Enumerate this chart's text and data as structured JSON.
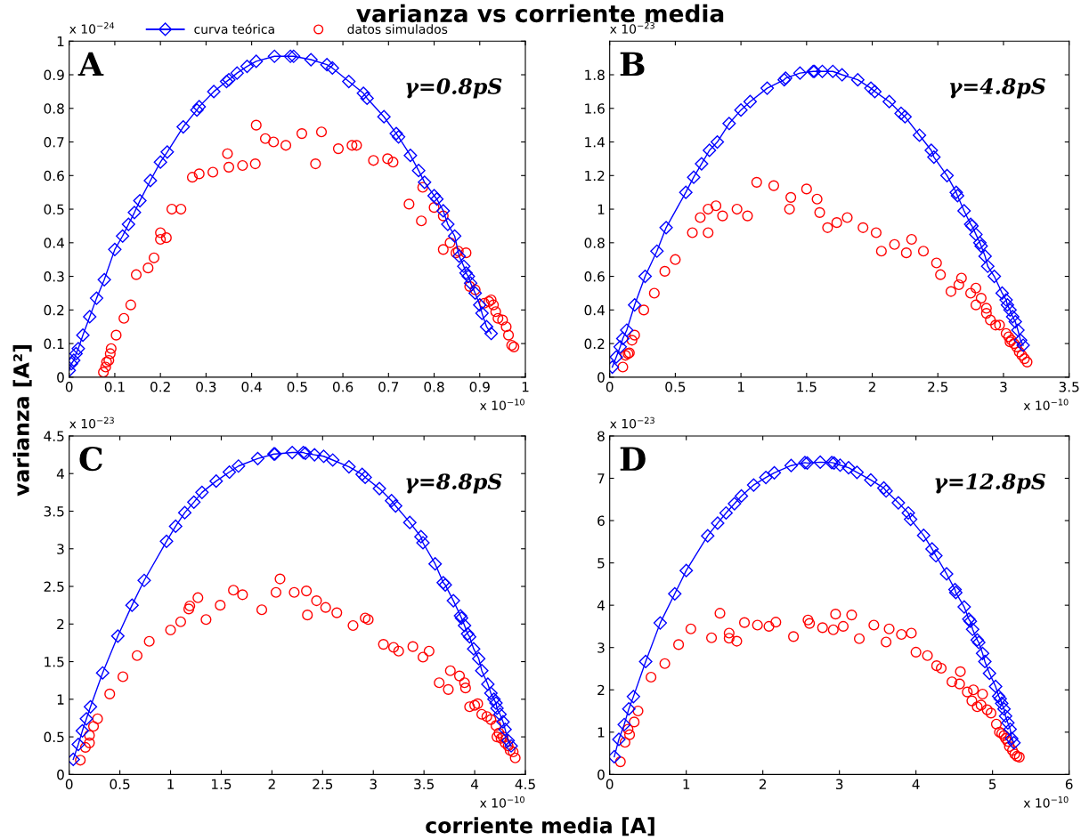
{
  "chart_data": [
    {
      "type": "scatter",
      "title": "varianza vs corriente media",
      "ylabel": "varianza [A²]",
      "legend": "top",
      "grid": false,
      "xlim": [
        0,
        1
      ],
      "xticks": [
        0,
        0.1,
        0.2,
        0.3,
        0.4,
        0.5,
        0.6,
        0.7,
        0.8,
        0.9,
        1
      ],
      "ylim": [
        0,
        1
      ],
      "yticks": [
        0,
        0.1,
        0.2,
        0.3,
        0.4,
        0.5,
        0.6,
        0.7,
        0.8,
        0.9,
        1
      ],
      "annotations": [
        "A",
        "γ=0.8pS",
        "x 10$^{−24}$",
        "x 10$^{−10}$"
      ],
      "series": [
        {
          "name": "curva teórica",
          "type": "line",
          "marker": "diamond",
          "line_style": "solid",
          "color": "#0000ff",
          "x": [
            0,
            0.005,
            0.01,
            0.015,
            0.02,
            0.03,
            0.045,
            0.06,
            0.077,
            0.1,
            0.117,
            0.13,
            0.143,
            0.155,
            0.178,
            0.2,
            0.215,
            0.25,
            0.28,
            0.285,
            0.317,
            0.345,
            0.35,
            0.368,
            0.39,
            0.41,
            0.45,
            0.485,
            0.492,
            0.53,
            0.565,
            0.577,
            0.613,
            0.645,
            0.653,
            0.69,
            0.717,
            0.722,
            0.748,
            0.766,
            0.779,
            0.8,
            0.806,
            0.82,
            0.83,
            0.845,
            0.855,
            0.865,
            0.87,
            0.875,
            0.88,
            0.89,
            0.9,
            0.905,
            0.915,
            0.925
          ],
          "values": [
            0.02,
            0.04,
            0.05,
            0.07,
            0.085,
            0.125,
            0.18,
            0.235,
            0.29,
            0.38,
            0.42,
            0.455,
            0.49,
            0.525,
            0.585,
            0.64,
            0.67,
            0.745,
            0.795,
            0.805,
            0.85,
            0.88,
            0.885,
            0.905,
            0.925,
            0.94,
            0.955,
            0.955,
            0.955,
            0.945,
            0.93,
            0.92,
            0.88,
            0.845,
            0.83,
            0.775,
            0.725,
            0.715,
            0.66,
            0.615,
            0.58,
            0.54,
            0.53,
            0.495,
            0.455,
            0.42,
            0.36,
            0.33,
            0.31,
            0.3,
            0.28,
            0.25,
            0.215,
            0.19,
            0.15,
            0.13
          ]
        },
        {
          "name": "datos simulados",
          "marker": "circle",
          "color": "#ff0000",
          "x": [
            0.075,
            0.08,
            0.082,
            0.087,
            0.09,
            0.092,
            0.103,
            0.12,
            0.135,
            0.147,
            0.173,
            0.186,
            0.2,
            0.2,
            0.213,
            0.225,
            0.245,
            0.27,
            0.285,
            0.315,
            0.347,
            0.35,
            0.38,
            0.408,
            0.41,
            0.43,
            0.448,
            0.475,
            0.51,
            0.54,
            0.553,
            0.59,
            0.62,
            0.63,
            0.667,
            0.698,
            0.71,
            0.745,
            0.772,
            0.775,
            0.8,
            0.82,
            0.82,
            0.835,
            0.848,
            0.853,
            0.87,
            0.878,
            0.89,
            0.91,
            0.92,
            0.925,
            0.93,
            0.935,
            0.94,
            0.95,
            0.958,
            0.963,
            0.97,
            0.975
          ],
          "values": [
            0.015,
            0.03,
            0.045,
            0.05,
            0.07,
            0.085,
            0.125,
            0.175,
            0.215,
            0.305,
            0.325,
            0.355,
            0.43,
            0.41,
            0.415,
            0.5,
            0.5,
            0.595,
            0.605,
            0.61,
            0.665,
            0.625,
            0.63,
            0.635,
            0.75,
            0.71,
            0.7,
            0.69,
            0.725,
            0.635,
            0.73,
            0.68,
            0.69,
            0.69,
            0.645,
            0.65,
            0.64,
            0.515,
            0.465,
            0.565,
            0.505,
            0.38,
            0.48,
            0.4,
            0.37,
            0.375,
            0.37,
            0.27,
            0.26,
            0.22,
            0.225,
            0.23,
            0.215,
            0.195,
            0.175,
            0.17,
            0.15,
            0.125,
            0.095,
            0.09
          ]
        }
      ]
    },
    {
      "type": "scatter",
      "grid": false,
      "xlim": [
        0,
        3.5
      ],
      "xticks": [
        0,
        0.5,
        1,
        1.5,
        2,
        2.5,
        3,
        3.5
      ],
      "ylim": [
        0,
        2
      ],
      "yticks": [
        0,
        0.2,
        0.4,
        0.6,
        0.8,
        1,
        1.2,
        1.4,
        1.6,
        1.8
      ],
      "annotations": [
        "B",
        "γ=4.8pS",
        "x 10$^{−23}$",
        "x 10$^{−10}$"
      ],
      "series": [
        {
          "type": "line",
          "marker": "diamond",
          "line_style": "solid",
          "color": "#0000ff",
          "x": [
            0.02,
            0.05,
            0.08,
            0.1,
            0.13,
            0.19,
            0.27,
            0.36,
            0.43,
            0.58,
            0.64,
            0.7,
            0.76,
            0.82,
            0.91,
            1.0,
            1.07,
            1.2,
            1.33,
            1.34,
            1.45,
            1.55,
            1.56,
            1.62,
            1.7,
            1.77,
            1.89,
            1.99,
            2.02,
            2.13,
            2.22,
            2.25,
            2.36,
            2.45,
            2.47,
            2.57,
            2.64,
            2.65,
            2.7,
            2.75,
            2.76,
            2.79,
            2.82,
            2.83,
            2.86,
            2.88,
            2.93,
            2.99,
            3.02,
            3.03,
            3.05,
            3.07,
            3.09,
            3.11,
            3.13,
            3.15
          ],
          "values": [
            0.06,
            0.12,
            0.18,
            0.23,
            0.28,
            0.43,
            0.6,
            0.75,
            0.89,
            1.1,
            1.19,
            1.27,
            1.35,
            1.4,
            1.51,
            1.59,
            1.64,
            1.72,
            1.77,
            1.78,
            1.81,
            1.82,
            1.82,
            1.82,
            1.82,
            1.8,
            1.77,
            1.72,
            1.7,
            1.64,
            1.57,
            1.55,
            1.44,
            1.35,
            1.31,
            1.2,
            1.1,
            1.08,
            0.99,
            0.91,
            0.9,
            0.85,
            0.8,
            0.78,
            0.72,
            0.66,
            0.6,
            0.5,
            0.46,
            0.43,
            0.4,
            0.36,
            0.33,
            0.28,
            0.22,
            0.19
          ]
        },
        {
          "marker": "circle",
          "color": "#ff0000",
          "x": [
            0.1,
            0.12,
            0.14,
            0.15,
            0.17,
            0.19,
            0.26,
            0.34,
            0.42,
            0.5,
            0.63,
            0.69,
            0.75,
            0.75,
            0.81,
            0.86,
            0.97,
            1.05,
            1.12,
            1.25,
            1.37,
            1.38,
            1.5,
            1.58,
            1.6,
            1.66,
            1.73,
            1.81,
            1.93,
            2.03,
            2.07,
            2.17,
            2.26,
            2.3,
            2.39,
            2.49,
            2.52,
            2.6,
            2.66,
            2.68,
            2.75,
            2.79,
            2.79,
            2.83,
            2.87,
            2.87,
            2.9,
            2.94,
            2.97,
            3.02,
            3.04,
            3.05,
            3.06,
            3.08,
            3.1,
            3.12,
            3.14,
            3.16,
            3.18
          ],
          "values": [
            0.06,
            0.13,
            0.14,
            0.145,
            0.22,
            0.25,
            0.4,
            0.5,
            0.63,
            0.7,
            0.86,
            0.95,
            0.86,
            1.0,
            1.02,
            0.96,
            1.0,
            0.96,
            1.16,
            1.14,
            1.0,
            1.07,
            1.12,
            1.06,
            0.98,
            0.89,
            0.92,
            0.95,
            0.89,
            0.86,
            0.75,
            0.79,
            0.74,
            0.82,
            0.75,
            0.68,
            0.61,
            0.51,
            0.55,
            0.59,
            0.5,
            0.53,
            0.43,
            0.47,
            0.41,
            0.38,
            0.34,
            0.31,
            0.31,
            0.26,
            0.24,
            0.21,
            0.22,
            0.2,
            0.18,
            0.15,
            0.13,
            0.11,
            0.09
          ]
        }
      ]
    },
    {
      "type": "scatter",
      "xlabel": "corriente media [A]",
      "grid": false,
      "xlim": [
        0,
        4.5
      ],
      "xticks": [
        0,
        0.5,
        1,
        1.5,
        2,
        2.5,
        3,
        3.5,
        4,
        4.5
      ],
      "ylim": [
        0,
        4.5
      ],
      "yticks": [
        0,
        0.5,
        1,
        1.5,
        2,
        2.5,
        3,
        3.5,
        4,
        4.5
      ],
      "annotations": [
        "C",
        "γ=8.8pS",
        "x 10$^{−23}$",
        "x 10$^{−10}$"
      ],
      "series": [
        {
          "type": "line",
          "marker": "diamond",
          "line_style": "solid",
          "color": "#0000ff",
          "x": [
            0.04,
            0.09,
            0.13,
            0.17,
            0.21,
            0.33,
            0.48,
            0.62,
            0.74,
            0.96,
            1.05,
            1.14,
            1.23,
            1.31,
            1.45,
            1.58,
            1.67,
            1.86,
            2.02,
            2.03,
            2.2,
            2.31,
            2.33,
            2.42,
            2.51,
            2.6,
            2.76,
            2.89,
            2.92,
            3.06,
            3.18,
            3.22,
            3.36,
            3.47,
            3.49,
            3.61,
            3.69,
            3.71,
            3.79,
            3.86,
            3.87,
            3.9,
            3.93,
            3.95,
            3.99,
            4.04,
            4.07,
            4.13,
            4.16,
            4.19,
            4.21,
            4.22,
            4.25,
            4.28,
            4.3,
            4.33,
            4.36
          ],
          "values": [
            0.2,
            0.4,
            0.58,
            0.74,
            0.9,
            1.35,
            1.84,
            2.25,
            2.58,
            3.1,
            3.3,
            3.48,
            3.62,
            3.75,
            3.9,
            4.02,
            4.1,
            4.2,
            4.26,
            4.26,
            4.28,
            4.28,
            4.27,
            4.25,
            4.23,
            4.18,
            4.09,
            3.99,
            3.95,
            3.8,
            3.64,
            3.57,
            3.35,
            3.16,
            3.08,
            2.8,
            2.55,
            2.52,
            2.31,
            2.11,
            2.08,
            1.98,
            1.87,
            1.83,
            1.67,
            1.54,
            1.38,
            1.2,
            1.08,
            1.0,
            0.95,
            0.88,
            0.8,
            0.7,
            0.6,
            0.45,
            0.38
          ]
        },
        {
          "marker": "circle",
          "color": "#ff0000",
          "x": [
            0.11,
            0.16,
            0.2,
            0.2,
            0.24,
            0.28,
            0.4,
            0.53,
            0.67,
            0.79,
            1.0,
            1.1,
            1.18,
            1.19,
            1.27,
            1.35,
            1.49,
            1.62,
            1.71,
            1.9,
            2.04,
            2.08,
            2.22,
            2.34,
            2.35,
            2.44,
            2.53,
            2.64,
            2.8,
            2.92,
            2.95,
            3.1,
            3.2,
            3.25,
            3.39,
            3.49,
            3.55,
            3.65,
            3.74,
            3.76,
            3.85,
            3.9,
            3.91,
            3.95,
            4.0,
            4.03,
            4.07,
            4.12,
            4.16,
            4.21,
            4.22,
            4.24,
            4.26,
            4.28,
            4.3,
            4.33,
            4.35,
            4.38,
            4.4
          ],
          "values": [
            0.19,
            0.36,
            0.42,
            0.52,
            0.64,
            0.74,
            1.07,
            1.3,
            1.58,
            1.77,
            1.92,
            2.03,
            2.2,
            2.24,
            2.35,
            2.06,
            2.25,
            2.45,
            2.39,
            2.19,
            2.42,
            2.6,
            2.42,
            2.44,
            2.12,
            2.31,
            2.22,
            2.15,
            1.98,
            2.08,
            2.06,
            1.73,
            1.69,
            1.64,
            1.7,
            1.56,
            1.64,
            1.22,
            1.13,
            1.38,
            1.31,
            1.22,
            1.15,
            0.9,
            0.92,
            0.94,
            0.8,
            0.77,
            0.73,
            0.65,
            0.5,
            0.55,
            0.48,
            0.5,
            0.42,
            0.38,
            0.32,
            0.3,
            0.22
          ]
        }
      ]
    },
    {
      "type": "scatter",
      "grid": false,
      "xlim": [
        0,
        6
      ],
      "xticks": [
        0,
        1,
        2,
        3,
        4,
        5,
        6
      ],
      "ylim": [
        0,
        8
      ],
      "yticks": [
        0,
        1,
        2,
        3,
        4,
        5,
        6,
        7,
        8
      ],
      "annotations": [
        "D",
        "γ=12.8pS",
        "x 10$^{−23}$",
        "x 10$^{−10}$"
      ],
      "series": [
        {
          "type": "line",
          "marker": "diamond",
          "line_style": "solid",
          "color": "#0000ff",
          "x": [
            0.06,
            0.12,
            0.19,
            0.25,
            0.31,
            0.47,
            0.66,
            0.85,
            1.0,
            1.28,
            1.41,
            1.52,
            1.63,
            1.72,
            1.88,
            2.04,
            2.15,
            2.37,
            2.55,
            2.58,
            2.75,
            2.9,
            2.93,
            3.01,
            3.12,
            3.23,
            3.41,
            3.58,
            3.61,
            3.77,
            3.9,
            3.93,
            4.1,
            4.21,
            4.26,
            4.4,
            4.51,
            4.52,
            4.63,
            4.69,
            4.71,
            4.74,
            4.8,
            4.82,
            4.87,
            4.9,
            4.96,
            5.04,
            5.08,
            5.1,
            5.12,
            5.15,
            5.17,
            5.2,
            5.23,
            5.25,
            5.28
          ],
          "values": [
            0.42,
            0.83,
            1.18,
            1.55,
            1.84,
            2.67,
            3.58,
            4.27,
            4.82,
            5.64,
            5.94,
            6.18,
            6.4,
            6.58,
            6.84,
            7.02,
            7.13,
            7.3,
            7.37,
            7.36,
            7.38,
            7.37,
            7.36,
            7.31,
            7.25,
            7.14,
            6.96,
            6.77,
            6.7,
            6.42,
            6.18,
            6.03,
            5.65,
            5.33,
            5.17,
            4.74,
            4.37,
            4.3,
            3.96,
            3.67,
            3.62,
            3.43,
            3.18,
            3.12,
            2.86,
            2.67,
            2.39,
            2.08,
            1.85,
            1.79,
            1.68,
            1.55,
            1.38,
            1.22,
            1.07,
            0.85,
            0.75
          ]
        },
        {
          "marker": "circle",
          "color": "#ff0000",
          "x": [
            0.14,
            0.2,
            0.24,
            0.26,
            0.32,
            0.37,
            0.54,
            0.72,
            0.9,
            1.06,
            1.33,
            1.44,
            1.56,
            1.56,
            1.66,
            1.76,
            1.93,
            2.08,
            2.17,
            2.4,
            2.59,
            2.61,
            2.78,
            2.92,
            2.95,
            3.05,
            3.16,
            3.26,
            3.45,
            3.61,
            3.65,
            3.81,
            3.94,
            4.0,
            4.15,
            4.27,
            4.33,
            4.47,
            4.57,
            4.58,
            4.67,
            4.73,
            4.75,
            4.8,
            4.85,
            4.87,
            4.93,
            4.98,
            5.05,
            5.09,
            5.12,
            5.15,
            5.17,
            5.2,
            5.22,
            5.26,
            5.29,
            5.32,
            5.35
          ],
          "values": [
            0.3,
            0.76,
            1.07,
            0.94,
            1.24,
            1.5,
            2.3,
            2.62,
            3.07,
            3.44,
            3.23,
            3.81,
            3.34,
            3.22,
            3.15,
            3.59,
            3.53,
            3.5,
            3.6,
            3.26,
            3.65,
            3.57,
            3.47,
            3.42,
            3.79,
            3.5,
            3.77,
            3.21,
            3.53,
            3.13,
            3.44,
            3.31,
            3.34,
            2.89,
            2.81,
            2.57,
            2.51,
            2.19,
            2.14,
            2.43,
            1.95,
            1.74,
            2.0,
            1.6,
            1.64,
            1.9,
            1.53,
            1.45,
            1.19,
            1.0,
            0.97,
            0.92,
            0.85,
            0.78,
            0.66,
            0.57,
            0.48,
            0.43,
            0.41
          ]
        }
      ]
    }
  ]
}
